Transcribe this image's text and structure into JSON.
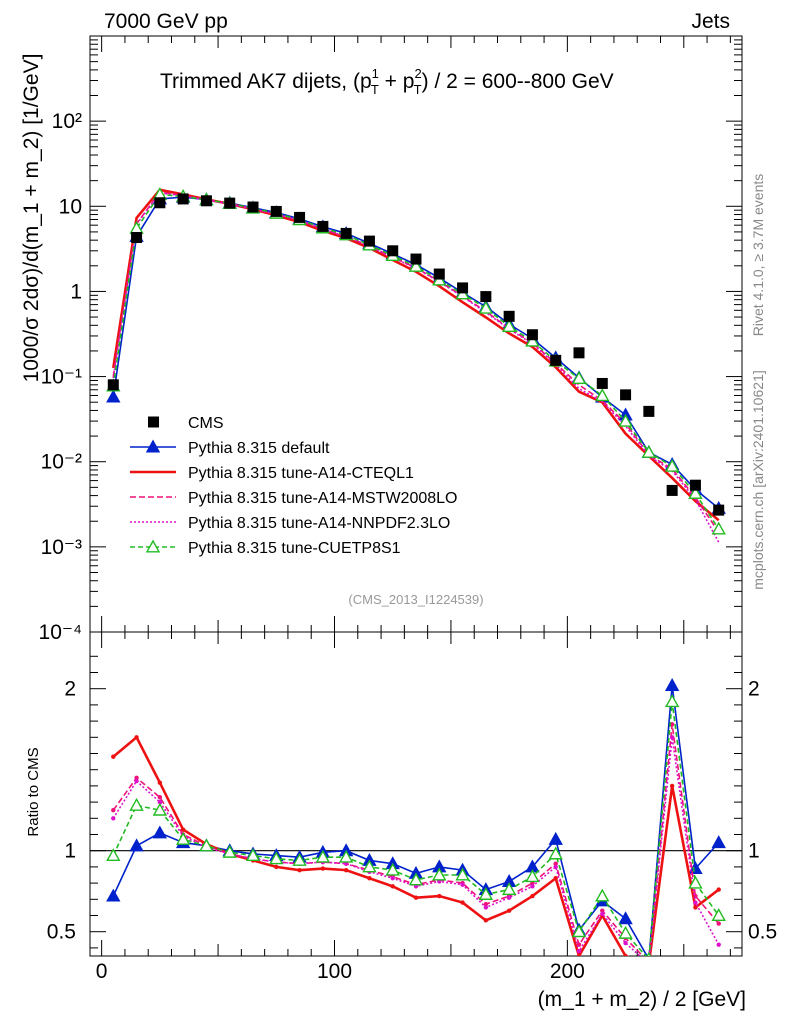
{
  "header": {
    "left": "7000 GeV pp",
    "right": "Jets",
    "title": "Trimmed AK7 dijets, (p",
    "title_sup1": "1",
    "title_sup2": "2",
    "title_sub": "T",
    "title_mid": " + p",
    "title_end": ") / 2 = 600--800 GeV"
  },
  "side": {
    "rivet": "Rivet 4.1.0, ≥ 3.7M events",
    "mcplots": "mcplots.cern.ch [arXiv:2401.10621]"
  },
  "analysis_id": "(CMS_2013_I1224539)",
  "chart_data": {
    "type": "line",
    "xlabel": "(m_1 + m_2) / 2 [GeV]",
    "ylabel_main": "1000/σ   2dσ)/d(m_1 + m_2) [1/GeV]",
    "ylabel_ratio": "Ratio to CMS",
    "xlim": [
      -5,
      275
    ],
    "ylim_main": [
      0.0001,
      1000
    ],
    "ylim_ratio": [
      0.35,
      2.35
    ],
    "x_ticks": [
      0,
      100,
      200
    ],
    "y_ticks_main": [
      "10⁻⁴",
      "10⁻³",
      "10⁻²",
      "10⁻¹",
      "1",
      "10",
      "10²"
    ],
    "y_ticks_ratio": [
      "0.5",
      "1",
      "2"
    ],
    "x": [
      5,
      15,
      25,
      35,
      45,
      55,
      65,
      75,
      85,
      95,
      105,
      115,
      125,
      135,
      145,
      155,
      165,
      175,
      185,
      195,
      205,
      215,
      225,
      235,
      245,
      255,
      265
    ],
    "cms": [
      0.08,
      4.3,
      11.0,
      12.2,
      11.6,
      10.9,
      9.8,
      8.7,
      7.4,
      5.8,
      4.8,
      3.9,
      3.0,
      2.4,
      1.6,
      1.1,
      0.87,
      0.51,
      0.31,
      0.155,
      0.19,
      0.083,
      0.061,
      0.039,
      0.0046,
      0.0053,
      0.0027
    ],
    "series": [
      {
        "name": "CMS",
        "style": "data",
        "color": "#000000"
      },
      {
        "name": "Pythia 8.315 default",
        "color": "#0022cc",
        "dash": "",
        "marker": "triangle-filled",
        "ratio": [
          0.72,
          1.03,
          1.11,
          1.05,
          1.03,
          1.0,
          0.98,
          0.97,
          0.96,
          0.99,
          1.0,
          0.94,
          0.92,
          0.86,
          0.9,
          0.88,
          0.76,
          0.81,
          0.9,
          1.07,
          0.51,
          0.69,
          0.58,
          0.33,
          2.02,
          0.89,
          1.05
        ]
      },
      {
        "name": "Pythia 8.315 tune-A14-CTEQL1",
        "color": "#ee1111",
        "dash": "",
        "marker": "none",
        "ratio": [
          1.58,
          1.7,
          1.42,
          1.13,
          1.04,
          0.98,
          0.94,
          0.9,
          0.88,
          0.89,
          0.88,
          0.83,
          0.78,
          0.71,
          0.72,
          0.68,
          0.57,
          0.63,
          0.72,
          0.83,
          0.35,
          0.6,
          0.35,
          0.3,
          1.4,
          0.65,
          0.76
        ]
      },
      {
        "name": "Pythia 8.315 tune-A14-MSTW2008LO",
        "color": "#ee1177",
        "dash": "6,3",
        "marker": "none",
        "ratio": [
          1.25,
          1.45,
          1.33,
          1.1,
          1.03,
          0.98,
          0.95,
          0.93,
          0.92,
          0.93,
          0.92,
          0.88,
          0.84,
          0.79,
          0.82,
          0.8,
          0.67,
          0.72,
          0.8,
          0.92,
          0.42,
          0.63,
          0.46,
          0.31,
          1.78,
          0.72,
          0.55
        ]
      },
      {
        "name": "Pythia 8.315 tune-A14-NNPDF2.3LO",
        "color": "#dd11cc",
        "dash": "2,2",
        "marker": "none",
        "ratio": [
          1.2,
          1.43,
          1.3,
          1.09,
          1.02,
          0.98,
          0.95,
          0.93,
          0.92,
          0.93,
          0.92,
          0.87,
          0.83,
          0.78,
          0.81,
          0.79,
          0.65,
          0.71,
          0.78,
          0.9,
          0.38,
          0.61,
          0.43,
          0.3,
          1.7,
          0.68,
          0.42
        ]
      },
      {
        "name": "Pythia 8.315 tune-CUETP8S1",
        "color": "#22bb22",
        "dash": "5,3",
        "marker": "triangle-open",
        "ratio": [
          0.97,
          1.28,
          1.25,
          1.07,
          1.03,
          0.99,
          0.97,
          0.95,
          0.94,
          0.96,
          0.96,
          0.9,
          0.88,
          0.82,
          0.85,
          0.85,
          0.73,
          0.76,
          0.84,
          0.98,
          0.5,
          0.72,
          0.49,
          0.33,
          1.92,
          0.8,
          0.6
        ]
      }
    ]
  }
}
